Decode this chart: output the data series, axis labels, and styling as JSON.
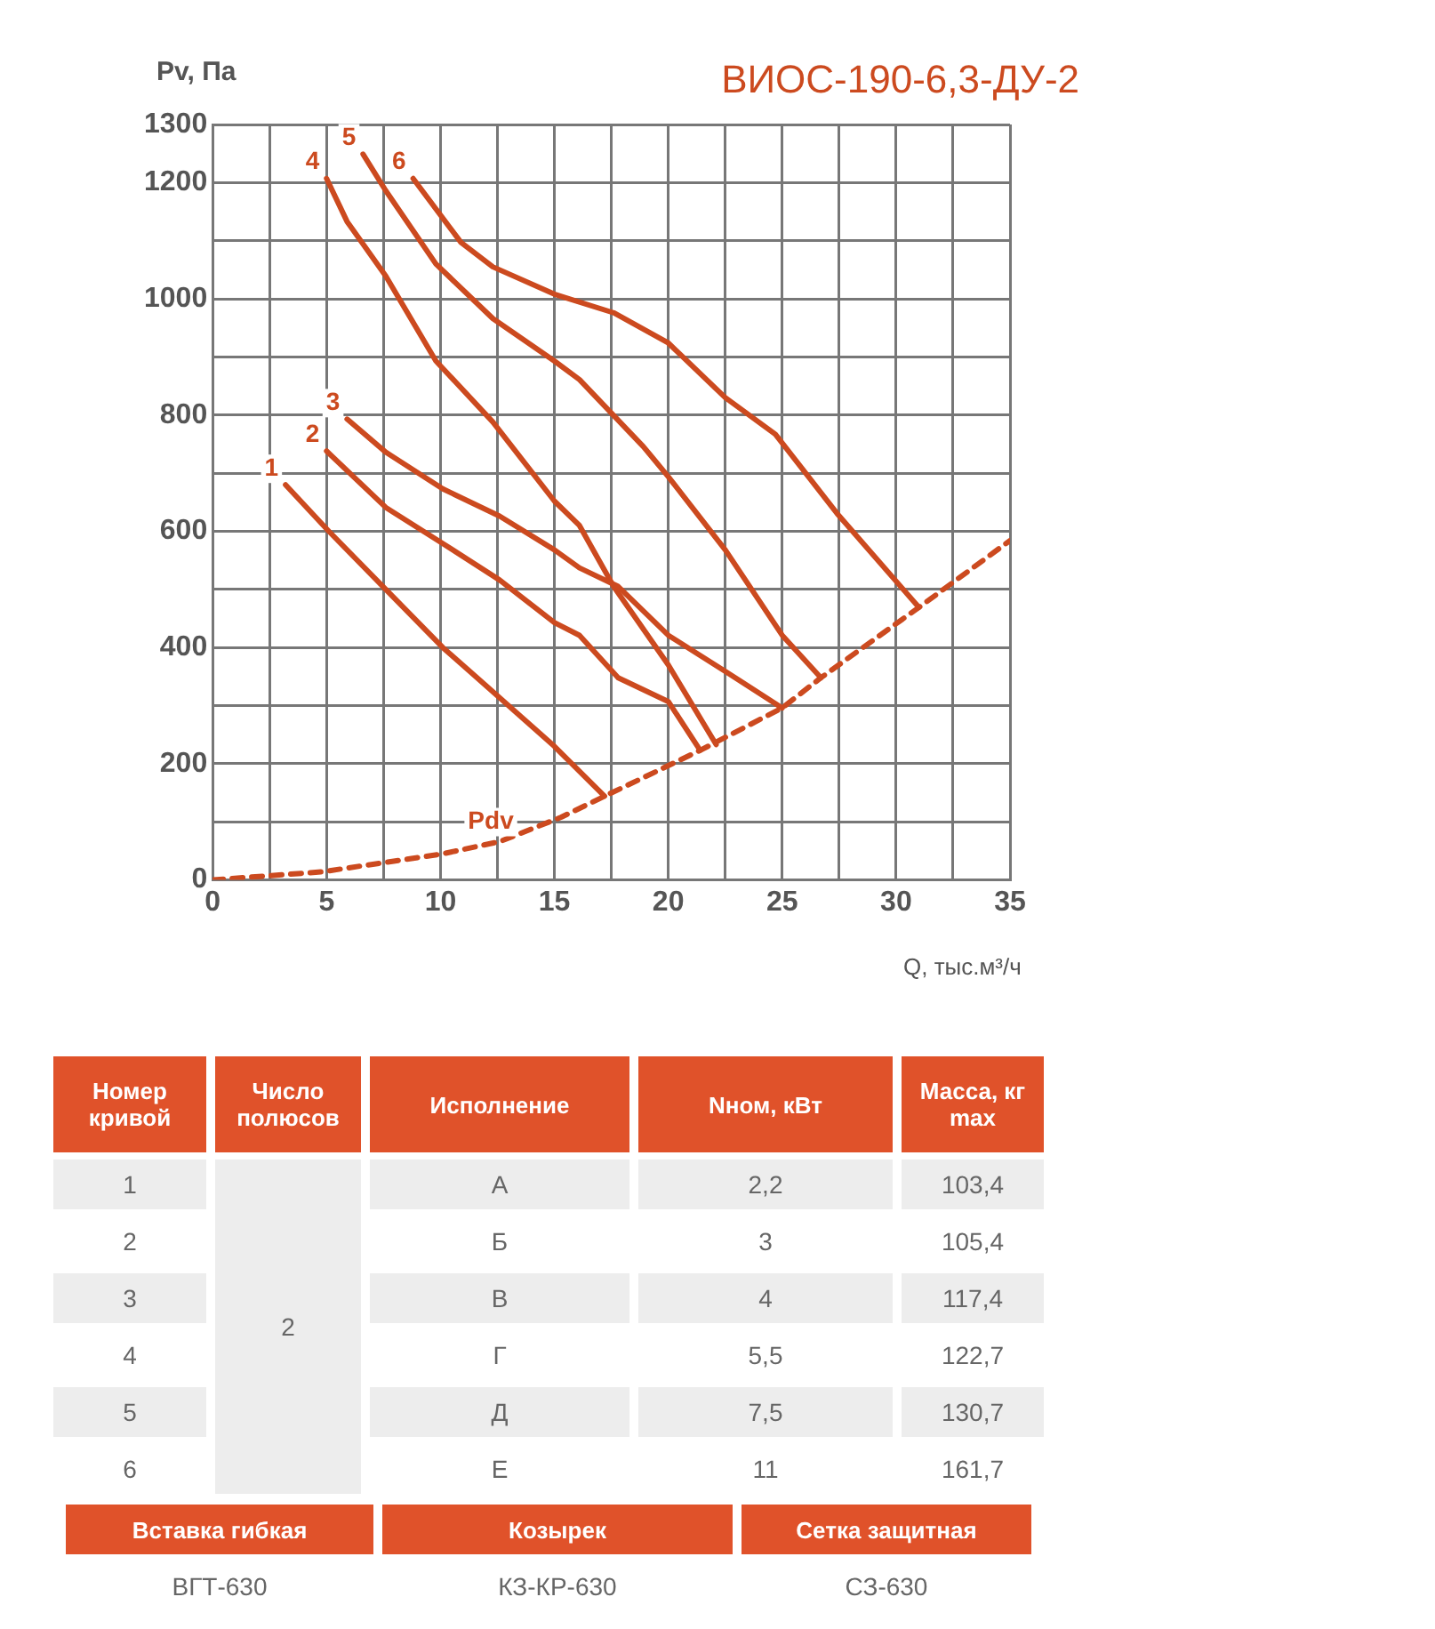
{
  "chart_data": {
    "type": "line",
    "title": "ВИОС-190-6,3-ДУ-2",
    "xlabel": "Q, тыс.м³/ч",
    "ylabel": "Pv, Па",
    "xlim": [
      0,
      35
    ],
    "ylim": [
      0,
      1300
    ],
    "xticks": [
      0,
      {
        "value": 2.5,
        "label": null
      },
      5,
      {
        "value": 7.5,
        "label": null
      },
      10,
      {
        "value": 12.5,
        "label": null
      },
      15,
      {
        "value": 17.5,
        "label": null
      },
      20,
      {
        "value": 22.5,
        "label": null
      },
      25,
      {
        "value": 27.5,
        "label": null
      },
      30,
      {
        "value": 32.5,
        "label": null
      },
      35
    ],
    "yticks": [
      0,
      {
        "value": 100,
        "label": null
      },
      200,
      {
        "value": 300,
        "label": null
      },
      400,
      {
        "value": 500,
        "label": null
      },
      600,
      {
        "value": 700,
        "label": null
      },
      800,
      {
        "value": 900,
        "label": null
      },
      1000,
      {
        "value": 1100,
        "label": null
      },
      1200,
      1300
    ],
    "grid": true,
    "legend": false,
    "marker": "none",
    "line_style": "solid",
    "series": [
      {
        "name": "1",
        "color": "#cc4a1f",
        "x": [
          3.2,
          5.1,
          7.6,
          10.1,
          12.5,
          15.0,
          17.2
        ],
        "values": [
          680,
          600,
          500,
          400,
          317,
          230,
          144
        ]
      },
      {
        "name": "2",
        "color": "#cc4a1f",
        "x": [
          5.0,
          7.6,
          10.1,
          12.6,
          15.0,
          16.1,
          17.8,
          20.0,
          21.4
        ],
        "values": [
          738,
          641,
          579,
          516,
          443,
          421,
          348,
          307,
          223
        ]
      },
      {
        "name": "3",
        "color": "#cc4a1f",
        "x": [
          5.9,
          7.6,
          10.1,
          12.6,
          15.0,
          16.1,
          17.8,
          20.0,
          22.5,
          25.0
        ],
        "values": [
          793,
          736,
          673,
          626,
          568,
          537,
          505,
          421,
          359,
          296
        ]
      },
      {
        "name": "4",
        "color": "#cc4a1f",
        "x": [
          5.0,
          5.9,
          7.6,
          9.8,
          12.3,
          15.0,
          16.1,
          17.6,
          20.0,
          22.1
        ],
        "values": [
          1207,
          1133,
          1039,
          893,
          788,
          652,
          610,
          505,
          370,
          233
        ]
      },
      {
        "name": "5",
        "color": "#cc4a1f",
        "x": [
          6.6,
          7.6,
          9.8,
          12.3,
          15.0,
          16.1,
          18.9,
          20.0,
          22.5,
          25.0,
          26.7
        ],
        "values": [
          1249,
          1186,
          1060,
          966,
          893,
          861,
          746,
          694,
          568,
          421,
          348
        ]
      },
      {
        "name": "6",
        "color": "#cc4a1f",
        "x": [
          8.8,
          10.9,
          12.3,
          15.0,
          17.6,
          20.0,
          22.5,
          24.7,
          27.4,
          31.0
        ],
        "values": [
          1207,
          1097,
          1055,
          1008,
          976,
          924,
          830,
          767,
          631,
          469
        ]
      },
      {
        "name": "Pdv",
        "color": "#cc4a1f",
        "line_style": "dashed",
        "x": [
          0,
          4.8,
          10.1,
          12.6,
          15.3,
          17.2,
          21.4,
          25.0,
          26.7,
          31.0,
          35.0
        ],
        "values": [
          0,
          14,
          45,
          66,
          108,
          144,
          223,
          296,
          348,
          469,
          584
        ]
      }
    ],
    "annotations": [
      "Номер кривой",
      "Число полюсов",
      "Исполнение",
      "Nном, кВт",
      "Масса, кг max",
      "1",
      "2",
      "А",
      "2,2",
      "103,4",
      "2",
      "Б",
      "3",
      "105,4",
      "3",
      "В",
      "4",
      "117,4",
      "4",
      "Г",
      "5,5",
      "122,7",
      "5",
      "Д",
      "7,5",
      "130,7",
      "6",
      "Е",
      "11",
      "161,7",
      "Вставка гибкая",
      "Козырек",
      "Сетка защитная",
      "ВГТ-630",
      "КЗ-КР-630",
      "СЗ-630"
    ]
  }
}
